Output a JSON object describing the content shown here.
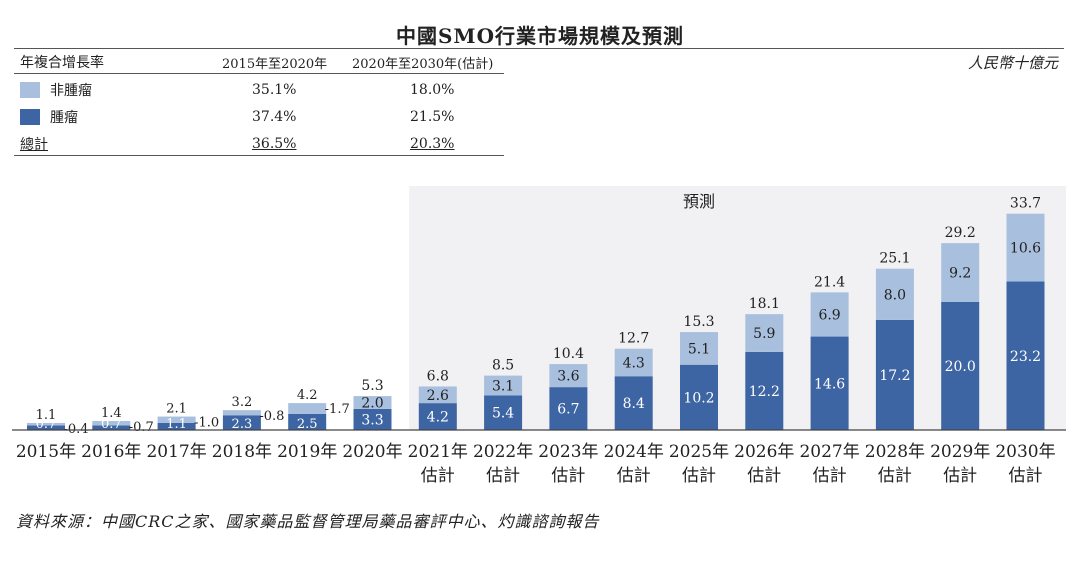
{
  "title": "中國SMO行業市場規模及預測",
  "unit": "人民幣十億元",
  "cagr_table": {
    "header": [
      "年複合增長率",
      "2015年至2020年",
      "2020年至2030年(估計)"
    ],
    "rows": [
      {
        "label": "非腫瘤",
        "v1": "35.1%",
        "v2": "18.0%"
      },
      {
        "label": "腫瘤",
        "v1": "37.4%",
        "v2": "21.5%"
      },
      {
        "label": "總計",
        "v1": "36.5%",
        "v2": "20.3%"
      }
    ]
  },
  "colors": {
    "tumor": "#3d64a3",
    "non_tumor": "#a8bfdd",
    "forecast_bg": "#f1f1f3"
  },
  "chart_data": {
    "type": "bar",
    "stacked": true,
    "title": "中國SMO行業市場規模及預測",
    "ylabel": "人民幣十億元",
    "forecast_label": "預測",
    "forecast_start_index": 6,
    "ylim": [
      0,
      35
    ],
    "categories": [
      "2015年",
      "2016年",
      "2017年",
      "2018年",
      "2019年",
      "2020年",
      "2021年",
      "2022年",
      "2023年",
      "2024年",
      "2025年",
      "2026年",
      "2027年",
      "2028年",
      "2029年",
      "2030年"
    ],
    "category_sublabels": [
      "",
      "",
      "",
      "",
      "",
      "",
      "估計",
      "估計",
      "估計",
      "估計",
      "估計",
      "估計",
      "估計",
      "估計",
      "估計",
      "估計"
    ],
    "series": [
      {
        "name": "腫瘤",
        "values": [
          0.7,
          0.7,
          1.1,
          2.3,
          2.5,
          3.3,
          4.2,
          5.4,
          6.7,
          8.4,
          10.2,
          12.2,
          14.6,
          17.2,
          20.0,
          23.2
        ]
      },
      {
        "name": "非腫瘤",
        "values": [
          0.4,
          0.7,
          1.0,
          0.8,
          1.7,
          2.0,
          2.6,
          3.1,
          3.6,
          4.3,
          5.1,
          5.9,
          6.9,
          8.0,
          9.2,
          10.6
        ]
      }
    ],
    "totals": [
      1.1,
      1.4,
      2.1,
      3.2,
      4.2,
      5.3,
      6.8,
      8.5,
      10.4,
      12.7,
      15.3,
      18.1,
      21.4,
      25.1,
      29.2,
      33.7
    ]
  },
  "footer": "資料來源：中國CRC之家、國家藥品監督管理局藥品審評中心、灼識諮詢報告"
}
